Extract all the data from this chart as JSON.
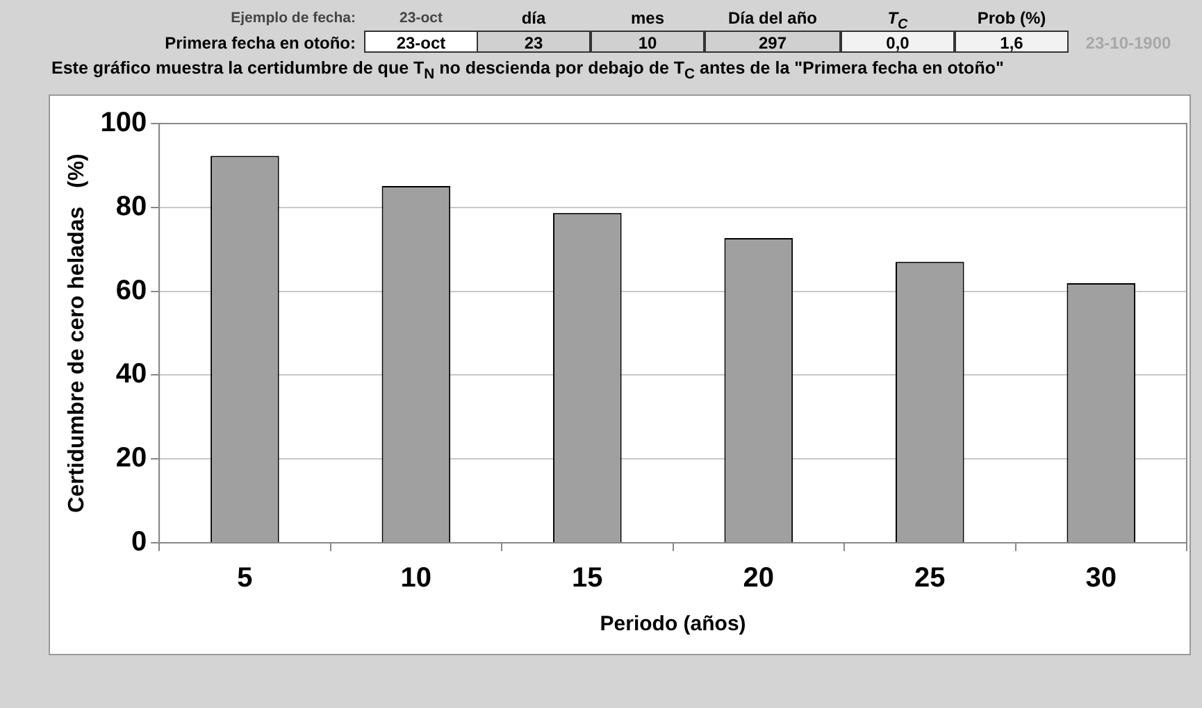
{
  "chart_data": {
    "type": "bar",
    "title": "Este gráfico muestra la certidumbre de que T$_{N}$  no descienda por debajo de T$_{C}$  antes de  la \"Primera fecha en otoño\"",
    "xlabel": "Periodo (años)",
    "ylabel": "Certidumbre de cero heladas   (%)",
    "categories": [
      "5",
      "10",
      "15",
      "20",
      "25",
      "30"
    ],
    "values": [
      92.3,
      85.1,
      78.7,
      72.7,
      67.0,
      61.9
    ],
    "color": "#a0a0a0",
    "ylim": [
      0,
      100
    ],
    "yticks": [
      0,
      20,
      40,
      60,
      80,
      100
    ],
    "grid": "y",
    "legend": false,
    "annotations": [
      "Ejemplo de fecha:",
      "23-oct",
      "día",
      "mes",
      "Día del año",
      "T$_{C}$",
      "Prob (%)",
      "Primera fecha en otoño:",
      "23-oct",
      "23",
      "10",
      "297",
      "0,0",
      "1,6",
      "23-10-1900"
    ]
  }
}
